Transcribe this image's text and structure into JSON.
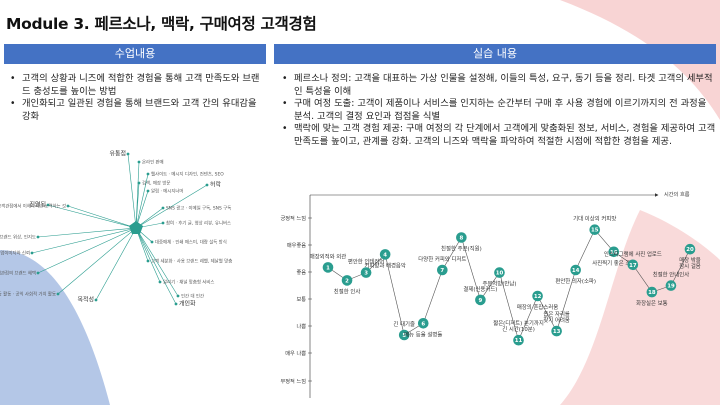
{
  "slide": {
    "title": "Module 3. 페르소나, 맥락, 구매여정 고객경험",
    "colors": {
      "header": "#4472c4",
      "pink": "#f8d4d4",
      "blue": "#b4c7e7",
      "teal": "#2a9d8f"
    }
  },
  "left": {
    "header": "수업내용",
    "bullets": [
      "고객의 상황과 니즈에 적합한 경험을 통해 고객 만족도와 브랜드 충성도를 높이는 방법",
      "개인화되고 일관된 경험을 통해 브랜드와 고객 간의 유대감을 강화"
    ]
  },
  "right": {
    "header": "실습 내용",
    "bullets": [
      "페르소나 정의: 고객을 대표하는 가상 인물을 설정해, 이들의 특성, 요구, 동기 등을 정리. 타겟 고객의 세부적인 특성을 이해",
      "구매 여정 도출: 고객이 제품이나 서비스를 인지하는 순간부터 구매 후 사용 경험에 이르기까지의 전 과정을 분석. 고객의 결정 요인과 접점을 식별",
      "맥락에 맞는 고객 경험 제공: 구매 여정의 각 단계에서 고객에게 맞춤화된 정보, 서비스, 경험을 제공하여 고객 만족도를 높이고, 관계를 강화. 고객의 니즈와 맥락을 파악하여 적절한 시점에 적합한 경험을 제공."
    ]
  },
  "mindmap": {
    "center_icon": "pentagon-icon",
    "nodes": [
      {
        "label": "유통점",
        "big": true
      },
      {
        "label": "온라인 판매",
        "big": false
      },
      {
        "label": "검색, 매장 방문",
        "big": false
      },
      {
        "label": "진열됨",
        "big": true
      },
      {
        "label": "공감 능력 · 고객관점에서 이해하려고 노력하는 것",
        "big": false
      },
      {
        "label": "브랜드 캐릭터 · 브랜드 위상, 인지도",
        "big": false
      },
      {
        "label": "기업의 사회적 책임 · 기업이미지와 신뢰",
        "big": false
      },
      {
        "label": "브랜드 헤택 · 고객관점의 브랜드 혜택",
        "big": false
      },
      {
        "label": "공동 활동 · 공익 사회적 가치 활동",
        "big": false
      },
      {
        "label": "목적성",
        "big": true
      },
      {
        "label": "웹사이트 · 메시지 디자인, 컨텐츠, SEO",
        "big": false
      },
      {
        "label": "알림 · 메시지너머",
        "big": false
      },
      {
        "label": "허락",
        "big": true
      },
      {
        "label": "SNS 광고 · 이메일 구독, SNS 구독",
        "big": false
      },
      {
        "label": "참여 · 후기 글, 영상 리뷰, 유니버스",
        "big": false
      },
      {
        "label": "대중매체 · 인쇄 매스미, 대량 설득 방식",
        "big": false
      },
      {
        "label": "고객 세분화 · 사용 브랜드 레벨, 제날별 맞춤",
        "big": false
      },
      {
        "label": "알리기 · 채널 맞춤형 서비스",
        "big": false
      },
      {
        "label": "인간 대 인간",
        "big": false
      },
      {
        "label": "개인화",
        "big": true
      }
    ]
  },
  "journey": {
    "time_label": "시간의 흐름",
    "y_levels": [
      "긍정적 느낌",
      "매우좋음",
      "좋음",
      "보통",
      "나쁨",
      "매우 나쁨",
      "부정적 느낌"
    ],
    "points": [
      {
        "n": 1,
        "label": "매장외적와 외관",
        "level": 1.9
      },
      {
        "n": 2,
        "label": "친절한 인사",
        "level": 2.4
      },
      {
        "n": 3,
        "label": "편안한 인테리어",
        "level": 2.1
      },
      {
        "n": 4,
        "label": "커피향과 배경음악",
        "level": 1.4
      },
      {
        "n": 5,
        "label": "긴 대기줄",
        "level": 4.5
      },
      {
        "n": 6,
        "label": "메뉴 등을 설명들",
        "level": 4.05
      },
      {
        "n": 7,
        "label": "다양한 커피와 디저트",
        "level": 2.0
      },
      {
        "n": 8,
        "label": "친절한 주문(직원)",
        "level": 0.75
      },
      {
        "n": 9,
        "label": "결제(신용카드)",
        "level": 3.15
      },
      {
        "n": 10,
        "label": "주문처방(만남)",
        "level": 2.1
      },
      {
        "n": 11,
        "label": "짧은(디저트) 분기까지 긴 시간(10분)",
        "level": 4.7
      },
      {
        "n": 12,
        "label": "매장의 혼잡스러움",
        "level": 3.0
      },
      {
        "n": 13,
        "label": "좁은 자리를 찾기 어려움",
        "level": 4.35
      },
      {
        "n": 14,
        "label": "편안한 의자(소파)",
        "level": 2.0
      },
      {
        "n": 15,
        "label": "기대 이상의 커피맛",
        "level": 0.45
      },
      {
        "n": 16,
        "label": "사진찍기 좋은 조명",
        "level": 1.3
      },
      {
        "n": 17,
        "label": "인스타그램에 사진 업로드",
        "level": 1.8
      },
      {
        "n": 18,
        "label": "화장실은 보통",
        "level": 2.85
      },
      {
        "n": 19,
        "label": "친절한 안내인사",
        "level": 2.6
      },
      {
        "n": 20,
        "label": "매장 밖을 잠시 걸음",
        "level": 1.2
      }
    ]
  }
}
